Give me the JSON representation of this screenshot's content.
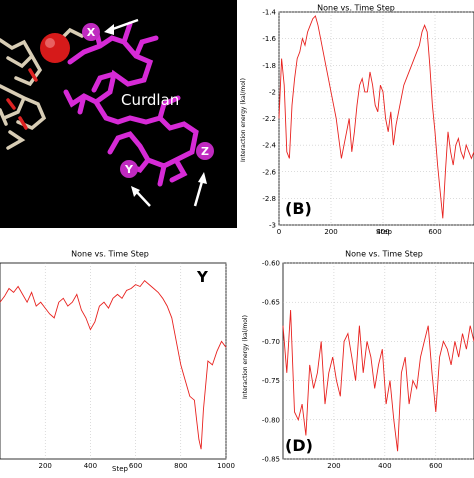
{
  "molecule_panel": {
    "label": "Curdlan",
    "markers": [
      "X",
      "Y",
      "Z"
    ]
  },
  "chart_data": [
    {
      "id": "B",
      "type": "line",
      "title": "None vs. Time Step",
      "panel_label": "(B)",
      "xlabel": "Step",
      "ylabel": "Interaction energy (kal/mol)",
      "xlim": [
        0,
        750
      ],
      "ylim": [
        -3.0,
        -1.4
      ],
      "xticks": [
        0,
        200,
        400,
        600
      ],
      "yticks": [
        -1.4,
        -1.6,
        -1.8,
        -2.0,
        -2.2,
        -2.4,
        -2.6,
        -2.8,
        -3.0
      ],
      "color": "#e8221f",
      "x": [
        0,
        10,
        20,
        30,
        40,
        50,
        60,
        70,
        80,
        90,
        100,
        110,
        120,
        130,
        140,
        150,
        160,
        170,
        180,
        190,
        200,
        210,
        220,
        230,
        240,
        250,
        260,
        270,
        280,
        290,
        300,
        310,
        320,
        330,
        340,
        350,
        360,
        370,
        380,
        390,
        400,
        410,
        420,
        430,
        440,
        450,
        460,
        470,
        480,
        490,
        500,
        510,
        520,
        530,
        540,
        550,
        560,
        570,
        580,
        590,
        600,
        610,
        620,
        630,
        640,
        650,
        660,
        670,
        680,
        690,
        700,
        710,
        720,
        730,
        740,
        750
      ],
      "values": [
        -2.2,
        -1.75,
        -1.95,
        -2.45,
        -2.5,
        -2.1,
        -1.9,
        -1.75,
        -1.7,
        -1.6,
        -1.65,
        -1.55,
        -1.5,
        -1.45,
        -1.43,
        -1.5,
        -1.6,
        -1.7,
        -1.8,
        -1.9,
        -2.0,
        -2.1,
        -2.2,
        -2.35,
        -2.5,
        -2.4,
        -2.3,
        -2.2,
        -2.45,
        -2.3,
        -2.1,
        -1.95,
        -1.9,
        -2.0,
        -2.0,
        -1.85,
        -1.95,
        -2.1,
        -2.15,
        -1.95,
        -2.0,
        -2.2,
        -2.3,
        -2.15,
        -2.4,
        -2.25,
        -2.15,
        -2.05,
        -1.95,
        -1.9,
        -1.85,
        -1.8,
        -1.75,
        -1.7,
        -1.65,
        -1.55,
        -1.5,
        -1.55,
        -1.8,
        -2.1,
        -2.3,
        -2.55,
        -2.75,
        -2.95,
        -2.6,
        -2.3,
        -2.45,
        -2.55,
        -2.4,
        -2.35,
        -2.45,
        -2.5,
        -2.4,
        -2.45,
        -2.5,
        -2.45
      ]
    },
    {
      "id": "C",
      "type": "line",
      "title": "None vs. Time Step",
      "panel_label": "Y",
      "xlabel": "Step",
      "ylabel": "",
      "xlim": [
        0,
        1000
      ],
      "ylim": [
        0,
        1
      ],
      "xticks": [
        200,
        400,
        600,
        800,
        1000
      ],
      "yticks": [],
      "color": "#e8221f",
      "x": [
        0,
        20,
        40,
        60,
        80,
        100,
        120,
        140,
        160,
        180,
        200,
        220,
        240,
        260,
        280,
        300,
        320,
        340,
        360,
        380,
        400,
        420,
        440,
        460,
        480,
        500,
        520,
        540,
        560,
        580,
        600,
        620,
        640,
        660,
        680,
        700,
        720,
        740,
        760,
        780,
        800,
        820,
        840,
        860,
        870,
        880,
        890,
        900,
        920,
        940,
        960,
        980,
        1000
      ],
      "values": [
        0.8,
        0.83,
        0.87,
        0.85,
        0.88,
        0.84,
        0.8,
        0.85,
        0.78,
        0.8,
        0.77,
        0.74,
        0.72,
        0.8,
        0.82,
        0.78,
        0.8,
        0.84,
        0.76,
        0.72,
        0.66,
        0.7,
        0.78,
        0.8,
        0.77,
        0.82,
        0.84,
        0.82,
        0.86,
        0.87,
        0.89,
        0.88,
        0.91,
        0.89,
        0.87,
        0.85,
        0.82,
        0.78,
        0.72,
        0.6,
        0.48,
        0.4,
        0.32,
        0.3,
        0.2,
        0.1,
        0.05,
        0.25,
        0.5,
        0.48,
        0.55,
        0.6,
        0.57
      ]
    },
    {
      "id": "D",
      "type": "line",
      "title": "None vs. Time Step",
      "panel_label": "(D)",
      "xlabel": "Step",
      "ylabel": "Interaction energy (kal/mol)",
      "xlim": [
        0,
        750
      ],
      "ylim": [
        -0.85,
        -0.6
      ],
      "xticks": [
        200,
        400,
        600
      ],
      "yticks": [
        -0.6,
        -0.65,
        -0.7,
        -0.75,
        -0.8,
        -0.85
      ],
      "ytick_labels": [
        "-0.60",
        "-0.65",
        "-0.70",
        "-0.75",
        "-0.80",
        "-0.85"
      ],
      "color": "#e8221f",
      "x": [
        0,
        15,
        30,
        45,
        60,
        75,
        90,
        105,
        120,
        135,
        150,
        165,
        180,
        195,
        210,
        225,
        240,
        255,
        270,
        285,
        300,
        315,
        330,
        345,
        360,
        375,
        390,
        405,
        420,
        435,
        450,
        465,
        480,
        495,
        510,
        525,
        540,
        555,
        570,
        585,
        600,
        615,
        630,
        645,
        660,
        675,
        690,
        705,
        720,
        735,
        750
      ],
      "values": [
        -0.68,
        -0.74,
        -0.66,
        -0.79,
        -0.8,
        -0.78,
        -0.82,
        -0.73,
        -0.76,
        -0.74,
        -0.7,
        -0.78,
        -0.74,
        -0.72,
        -0.75,
        -0.77,
        -0.7,
        -0.69,
        -0.72,
        -0.75,
        -0.68,
        -0.74,
        -0.7,
        -0.72,
        -0.76,
        -0.73,
        -0.71,
        -0.78,
        -0.75,
        -0.8,
        -0.84,
        -0.74,
        -0.72,
        -0.78,
        -0.75,
        -0.76,
        -0.72,
        -0.7,
        -0.68,
        -0.74,
        -0.79,
        -0.72,
        -0.7,
        -0.71,
        -0.73,
        -0.7,
        -0.72,
        -0.69,
        -0.71,
        -0.68,
        -0.7
      ]
    }
  ]
}
